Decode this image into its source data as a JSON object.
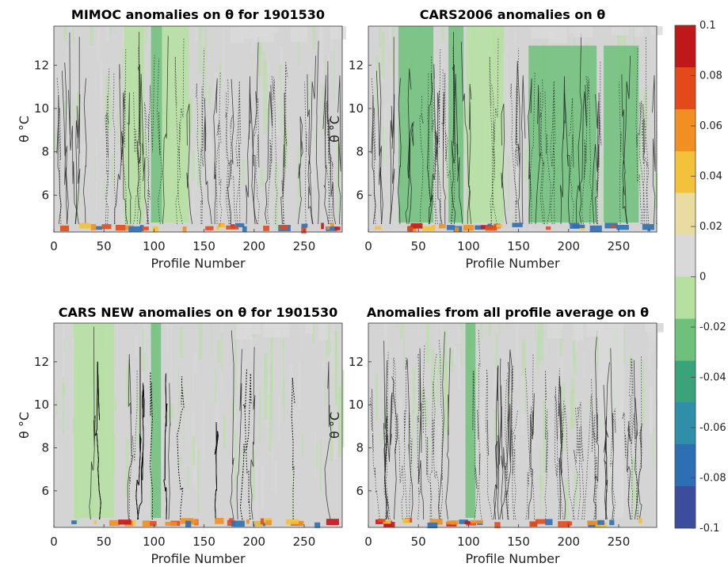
{
  "figure": {
    "colormap": [
      "#3b4d9c",
      "#2e6fb4",
      "#2f8fa8",
      "#3aa37a",
      "#6fc07a",
      "#b5e0a0",
      "#d9d9d9",
      "#e8dca0",
      "#f2c23a",
      "#f28f22",
      "#e34a1a",
      "#c01818"
    ],
    "panel_background": "#d4d4d4"
  },
  "chart_data": [
    {
      "type": "heatmap",
      "title": "MIMOC anomalies on θ  for 1901530",
      "xlabel": "Profile Number",
      "ylabel": "θ °C",
      "xlim": [
        0,
        288
      ],
      "ylim": [
        4.3,
        13.8
      ],
      "xticks": [
        0,
        50,
        100,
        150,
        200,
        250
      ],
      "yticks": [
        6,
        8,
        10,
        12
      ],
      "features": [
        {
          "x": [
            97,
            108
          ],
          "anomaly": -0.03
        },
        {
          "x": [
            70,
            90
          ],
          "anomaly": -0.015
        },
        {
          "x": [
            108,
            135
          ],
          "anomaly": -0.01
        }
      ]
    },
    {
      "type": "heatmap",
      "title": "CARS2006 anomalies on θ",
      "xlabel": "Profile Number",
      "ylabel": "θ °C",
      "xlim": [
        0,
        288
      ],
      "ylim": [
        4.3,
        13.8
      ],
      "xticks": [
        0,
        50,
        100,
        150,
        200,
        250
      ],
      "yticks": [
        6,
        8,
        10,
        12
      ],
      "features": [
        {
          "x": [
            30,
            65
          ],
          "anomaly": -0.02
        },
        {
          "x": [
            80,
            95
          ],
          "anomaly": -0.02
        },
        {
          "x": [
            98,
            135
          ],
          "anomaly": -0.015
        },
        {
          "x": [
            160,
            228
          ],
          "anomaly": -0.03
        },
        {
          "x": [
            235,
            270
          ],
          "anomaly": -0.03
        }
      ]
    },
    {
      "type": "heatmap",
      "title": "CARS NEW anomalies on θ for 1901530",
      "xlabel": "Profile Number",
      "ylabel": "θ °C",
      "xlim": [
        0,
        288
      ],
      "ylim": [
        4.3,
        13.8
      ],
      "xticks": [
        0,
        50,
        100,
        150,
        200,
        250
      ],
      "yticks": [
        6,
        8,
        10,
        12
      ],
      "features": [
        {
          "x": [
            97,
            107
          ],
          "anomaly": -0.025
        },
        {
          "x": [
            20,
            60
          ],
          "anomaly": -0.01
        }
      ]
    },
    {
      "type": "heatmap",
      "title": "Anomalies from all profile average on θ",
      "xlabel": "Profile Number",
      "ylabel": "θ °C",
      "xlim": [
        0,
        288
      ],
      "ylim": [
        4.3,
        13.8
      ],
      "xticks": [
        0,
        50,
        100,
        150,
        200,
        250
      ],
      "yticks": [
        6,
        8,
        10,
        12
      ],
      "features": [
        {
          "x": [
            97,
            107
          ],
          "anomaly": -0.02
        },
        {
          "x": [
            230,
            255
          ],
          "anomaly": 0.01
        }
      ]
    }
  ],
  "colorbar": {
    "range": [
      -0.1,
      0.1
    ],
    "ticks": [
      "0.1",
      "0.08",
      "0.06",
      "0.04",
      "0.02",
      "0",
      "-0.02",
      "-0.04",
      "-0.06",
      "-0.08",
      "-0.1"
    ]
  }
}
